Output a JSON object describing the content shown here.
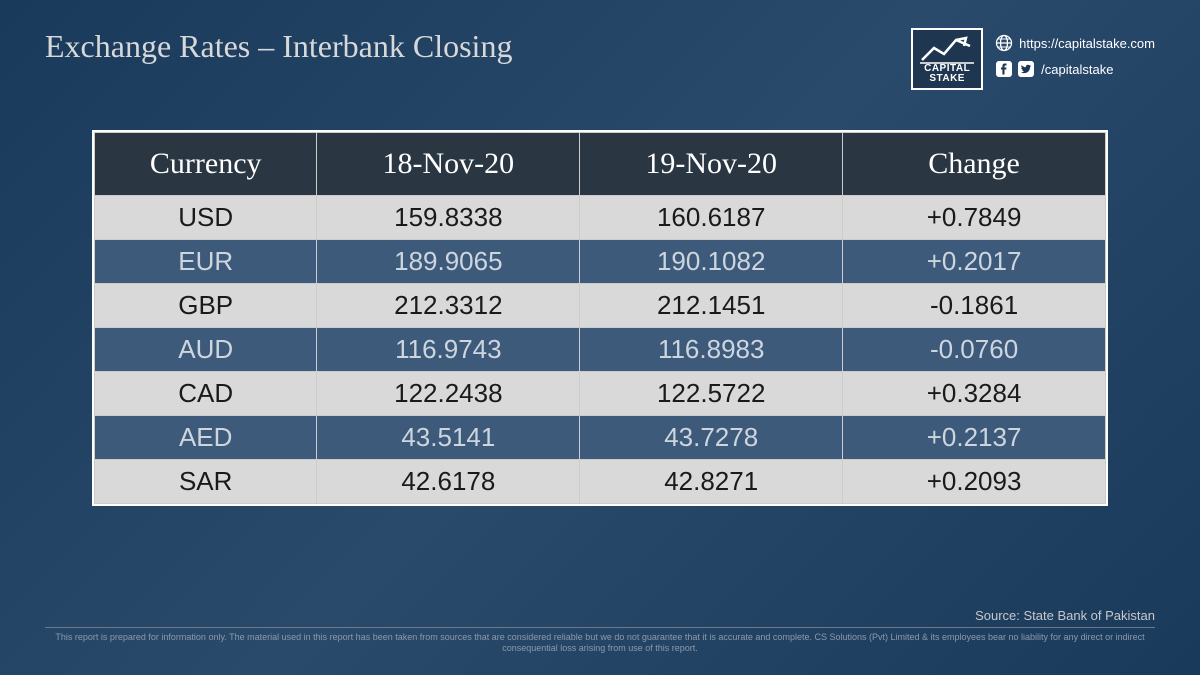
{
  "title": "Exchange Rates – Interbank Closing",
  "brand": {
    "logo_line1": "CAPITAL",
    "logo_line2": "STAKE",
    "website": "https://capitalstake.com",
    "handle": "/capitalstake"
  },
  "table": {
    "columns": [
      "Currency",
      "18-Nov-20",
      "19-Nov-20",
      "Change"
    ],
    "header_bg": "#2a3642",
    "header_color": "#ffffff",
    "light_row_bg": "#d9d9d9",
    "light_row_color": "#1a1a1a",
    "dark_row_bg": "#3e5a7a",
    "dark_row_color": "#cdd6de",
    "border_color": "#cccccc",
    "header_fontsize": 30,
    "cell_fontsize": 26,
    "rows": [
      {
        "currency": "USD",
        "d1": "159.8338",
        "d2": "160.6187",
        "change": "+0.7849",
        "style": "light"
      },
      {
        "currency": "EUR",
        "d1": "189.9065",
        "d2": "190.1082",
        "change": "+0.2017",
        "style": "dark"
      },
      {
        "currency": "GBP",
        "d1": "212.3312",
        "d2": "212.1451",
        "change": "-0.1861",
        "style": "light"
      },
      {
        "currency": "AUD",
        "d1": "116.9743",
        "d2": "116.8983",
        "change": "-0.0760",
        "style": "dark"
      },
      {
        "currency": "CAD",
        "d1": "122.2438",
        "d2": "122.5722",
        "change": "+0.3284",
        "style": "light"
      },
      {
        "currency": "AED",
        "d1": "43.5141",
        "d2": "43.7278",
        "change": "+0.2137",
        "style": "dark"
      },
      {
        "currency": "SAR",
        "d1": "42.6178",
        "d2": "42.8271",
        "change": "+0.2093",
        "style": "light"
      }
    ]
  },
  "source": "Source: State Bank of Pakistan",
  "disclaimer": "This report is prepared for information only. The material used in this report has been taken from sources that are considered reliable but we do not guarantee that it is accurate and complete. CS Solutions (Pvt) Limited & its employees bear no liability for any direct or indirect consequential loss arising from use of this report.",
  "colors": {
    "page_bg_start": "#1a3a5c",
    "page_bg_end": "#2a4a6c",
    "title_color": "#d8d8d8",
    "footer_text": "#8a9aaa",
    "source_text": "#c8c8c8"
  }
}
